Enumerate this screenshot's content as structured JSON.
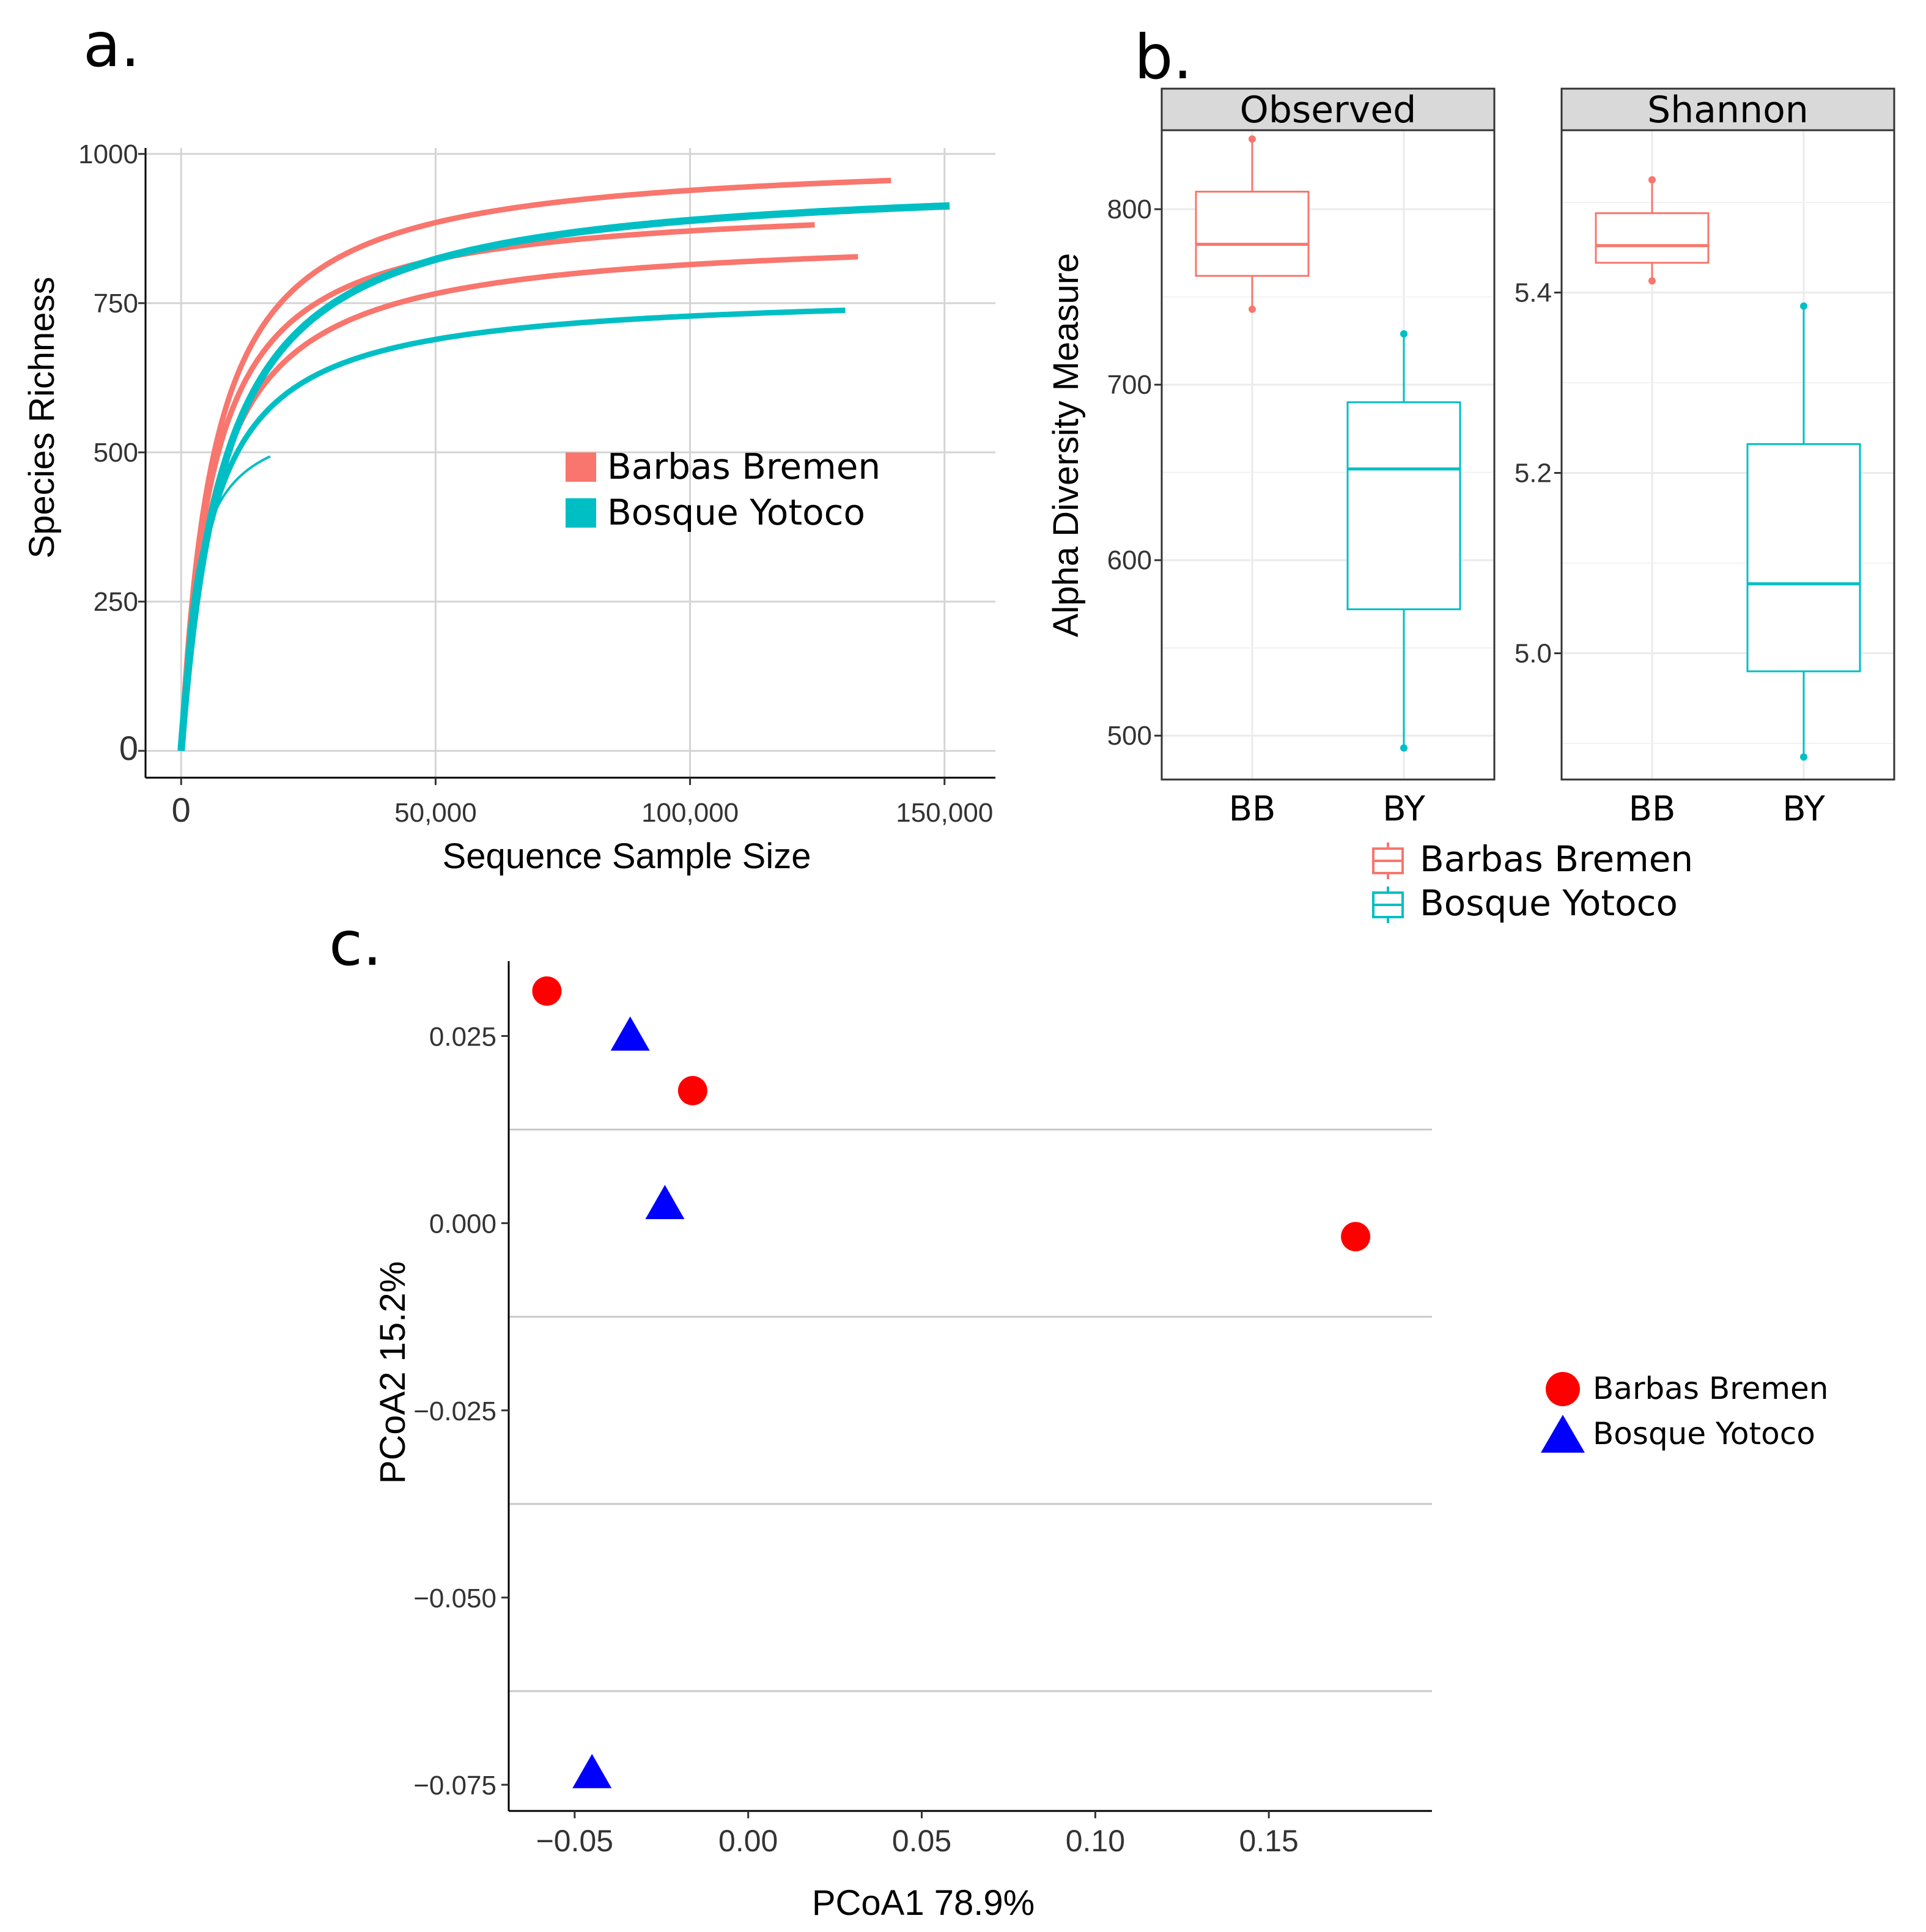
{
  "colors": {
    "barbas_bremen": "#F8766D",
    "bosque_yotoco": "#00BFC4",
    "pcoa_bb": "#FF0000",
    "pcoa_by": "#0000FF"
  },
  "chart_data": [
    {
      "id": "a",
      "panel_label": "a.",
      "type": "line",
      "title": "",
      "xlabel": "Sequence Sample Size",
      "ylabel": "Species Richness",
      "xlim": [
        -7000,
        160000
      ],
      "ylim": [
        -45,
        1010
      ],
      "x_ticks": [
        0,
        50000,
        100000,
        150000
      ],
      "x_tick_labels": [
        "0",
        "50,000",
        "100,000",
        "150,000"
      ],
      "y_ticks": [
        0,
        250,
        500,
        750,
        1000
      ],
      "y_tick_labels": [
        "0",
        "250",
        "500",
        "750",
        "1000"
      ],
      "legend": {
        "position": "center-right",
        "entries": [
          "Barbas Bremen",
          "Bosque Yotoco"
        ]
      },
      "series": [
        {
          "name": "Barbas Bremen",
          "group": "BB",
          "max_x": 139500,
          "asymptote": 1000,
          "k": 6500,
          "final_y": 990
        },
        {
          "name": "Barbas Bremen",
          "group": "BB",
          "max_x": 124500,
          "asymptote": 925,
          "k": 6200,
          "final_y": 907
        },
        {
          "name": "Barbas Bremen",
          "group": "BB",
          "max_x": 133000,
          "asymptote": 870,
          "k": 6800,
          "final_y": 852
        },
        {
          "name": "Bosque Yotoco",
          "group": "BY",
          "max_x": 151000,
          "asymptote": 965,
          "k": 8600,
          "final_y": 943
        },
        {
          "name": "Bosque Yotoco",
          "group": "BY",
          "max_x": 130500,
          "asymptote": 772,
          "k": 6000,
          "final_y": 755
        },
        {
          "name": "Bosque Yotoco",
          "group": "BY",
          "max_x": 17500,
          "asymptote": 575,
          "k": 2900,
          "final_y": 492
        }
      ]
    },
    {
      "id": "b",
      "panel_label": "b.",
      "type": "box",
      "ylabel": "Alpha Diversity Measure",
      "categories": [
        "BB",
        "BY"
      ],
      "legend": {
        "position": "bottom",
        "entries": [
          "Barbas Bremen",
          "Bosque Yotoco"
        ]
      },
      "facets": [
        {
          "name": "Observed",
          "ylim": [
            475,
            845
          ],
          "y_ticks": [
            500,
            600,
            700,
            800
          ],
          "y_tick_labels": [
            "500",
            "600",
            "700",
            "800"
          ],
          "boxes": [
            {
              "category": "BB",
              "min": 743,
              "q1": 762,
              "median": 780,
              "q3": 810,
              "max": 840
            },
            {
              "category": "BY",
              "min": 493,
              "q1": 572,
              "median": 652,
              "q3": 690,
              "max": 729
            }
          ]
        },
        {
          "name": "Shannon",
          "ylim": [
            4.86,
            5.58
          ],
          "y_ticks": [
            5.0,
            5.2,
            5.4
          ],
          "y_tick_labels": [
            "5.0",
            "5.2",
            "5.4"
          ],
          "boxes": [
            {
              "category": "BB",
              "min": 5.413,
              "q1": 5.433,
              "median": 5.452,
              "q3": 5.488,
              "max": 5.525
            },
            {
              "category": "BY",
              "min": 4.885,
              "q1": 4.98,
              "median": 5.077,
              "q3": 5.232,
              "max": 5.385
            }
          ]
        }
      ]
    },
    {
      "id": "c",
      "panel_label": "c.",
      "type": "scatter",
      "xlabel": "PCoA1 78.9%",
      "ylabel": "PCoA2 15.2%",
      "xlim": [
        -0.069,
        0.197
      ],
      "ylim": [
        -0.0785,
        0.035
      ],
      "x_ticks": [
        -0.05,
        0.0,
        0.05,
        0.1,
        0.15
      ],
      "x_tick_labels": [
        "−0.05",
        "0.00",
        "0.05",
        "0.10",
        "0.15"
      ],
      "y_ticks": [
        -0.075,
        -0.05,
        -0.025,
        0.0,
        0.025
      ],
      "y_tick_labels": [
        "−0.075",
        "−0.050",
        "−0.025",
        "0.000",
        "0.025"
      ],
      "legend": {
        "position": "right",
        "entries": [
          "Barbas Bremen",
          "Bosque Yotoco"
        ]
      },
      "series": [
        {
          "name": "Barbas Bremen",
          "shape": "circle",
          "points": [
            [
              -0.058,
              0.031
            ],
            [
              -0.016,
              0.0177
            ],
            [
              0.175,
              -0.0018
            ]
          ]
        },
        {
          "name": "Bosque Yotoco",
          "shape": "triangle",
          "points": [
            [
              -0.034,
              0.025
            ],
            [
              -0.024,
              0.0025
            ],
            [
              -0.045,
              -0.0735
            ]
          ]
        }
      ]
    }
  ]
}
